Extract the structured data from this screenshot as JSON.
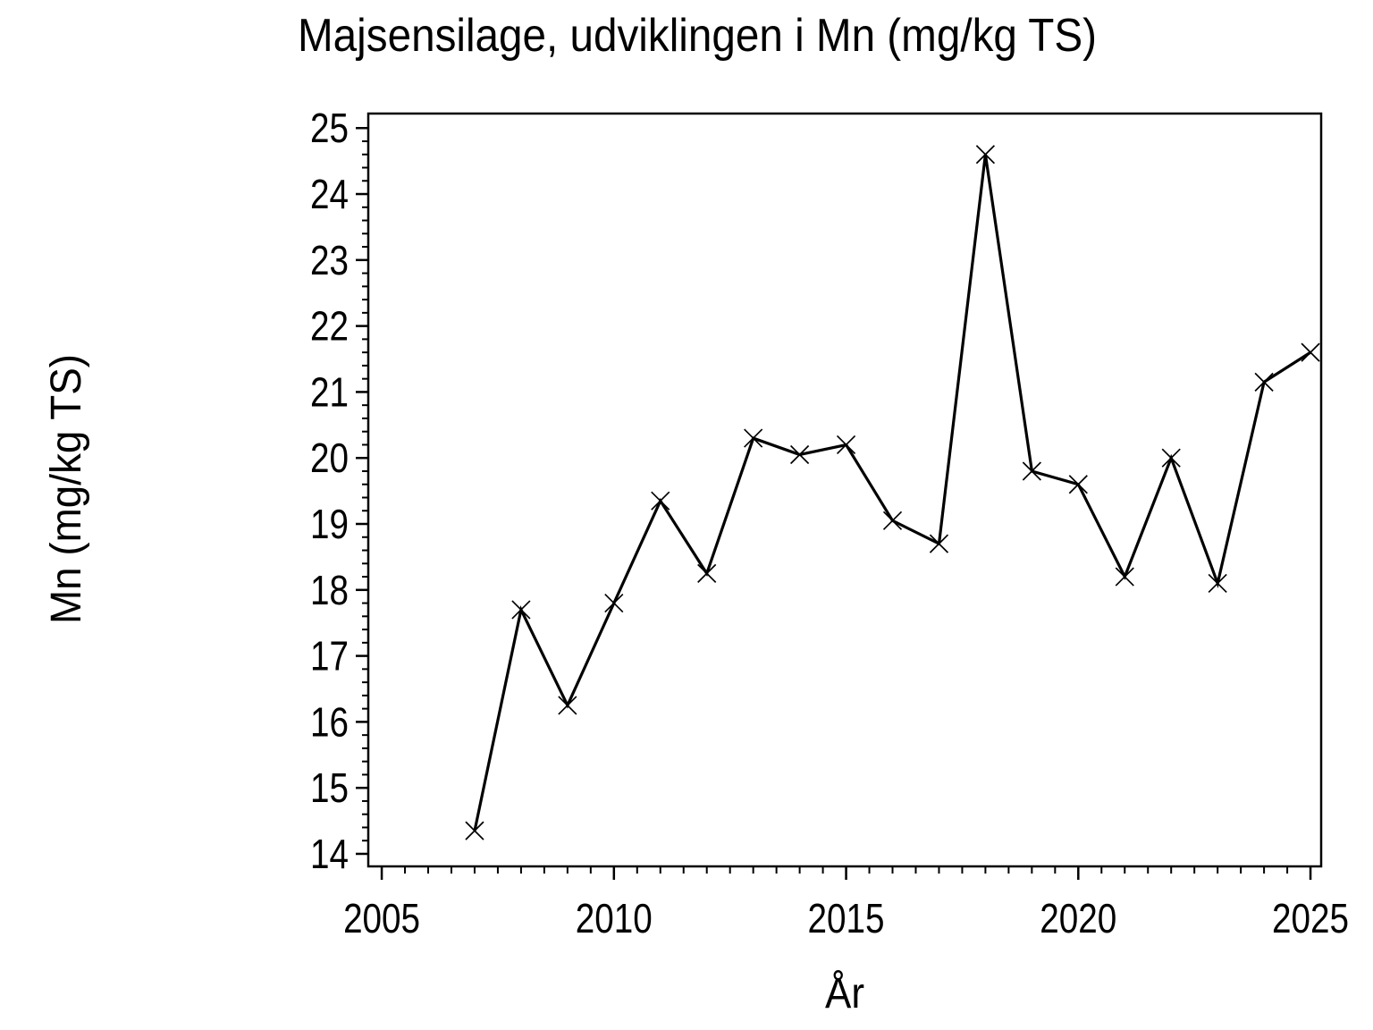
{
  "page": {
    "background": "#ffffff",
    "foreground": "#000000"
  },
  "chart_data": {
    "type": "line",
    "title": "Majsensilage, udviklingen i Mn (mg/kg TS)",
    "xlabel": "År",
    "ylabel": "Mn (mg/kg TS)",
    "series": [
      {
        "name": "Mn (mg/kg TS)",
        "x": [
          2007,
          2008,
          2009,
          2010,
          2011,
          2012,
          2013,
          2014,
          2015,
          2016,
          2017,
          2018,
          2019,
          2020,
          2021,
          2022,
          2023,
          2024,
          2025
        ],
        "values": [
          14.35,
          17.7,
          16.25,
          17.8,
          19.35,
          18.25,
          20.3,
          20.05,
          20.2,
          19.05,
          18.7,
          24.6,
          19.8,
          19.6,
          18.2,
          20.0,
          18.1,
          21.15,
          21.6
        ]
      }
    ],
    "xlim": [
      2004.71,
      2025.23
    ],
    "ylim": [
      13.81,
      25.22
    ],
    "x_major_ticks": [
      2005,
      2010,
      2015,
      2020,
      2025
    ],
    "x_tick_labels": [
      "2005",
      "2010",
      "2015",
      "2020",
      "2025"
    ],
    "x_minor_step": 0.5,
    "y_major_ticks": [
      14,
      15,
      16,
      17,
      18,
      19,
      20,
      21,
      22,
      23,
      24,
      25
    ],
    "y_tick_labels": [
      "14",
      "15",
      "16",
      "17",
      "18",
      "19",
      "20",
      "21",
      "22",
      "23",
      "24",
      "25"
    ],
    "y_minor_step": 0.2,
    "marker": "x",
    "line_color": "#000000",
    "background": "#ffffff",
    "grid": false,
    "legend": null
  }
}
